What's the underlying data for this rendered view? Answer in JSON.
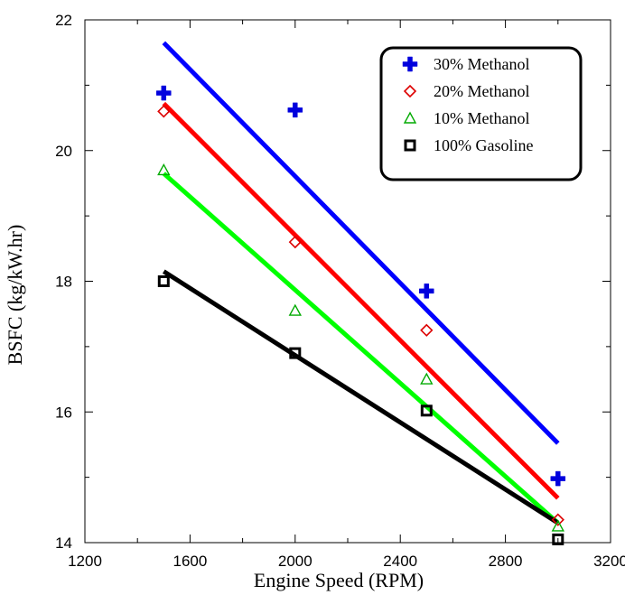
{
  "chart_data": {
    "type": "scatter",
    "title": "",
    "xlabel": "Engine Speed (RPM)",
    "ylabel": "BSFC (kg/kW.hr)",
    "xlim": [
      1200,
      3200
    ],
    "ylim": [
      14,
      22
    ],
    "x_ticks": [
      1200,
      1600,
      2000,
      2400,
      2800,
      3200
    ],
    "y_ticks": [
      14,
      16,
      18,
      20,
      22
    ],
    "grid": false,
    "legend_position": "top-right",
    "series": [
      {
        "name": "30% Methanol",
        "marker": "plus",
        "color": "#0000dd",
        "line_color": "#0000ff",
        "x": [
          1500,
          2000,
          2500,
          3000
        ],
        "y": [
          20.88,
          20.62,
          17.85,
          14.98
        ],
        "fit": [
          [
            1500,
            21.65
          ],
          [
            3000,
            15.52
          ]
        ]
      },
      {
        "name": "20% Methanol",
        "marker": "diamond",
        "color": "#dd0000",
        "line_color": "#ff0000",
        "x": [
          1500,
          2000,
          2500,
          3000
        ],
        "y": [
          20.6,
          18.6,
          17.25,
          14.35
        ],
        "fit": [
          [
            1500,
            20.72
          ],
          [
            3000,
            14.68
          ]
        ]
      },
      {
        "name": "10% Methanol",
        "marker": "triangle",
        "color": "#00aa00",
        "line_color": "#00ff00",
        "x": [
          1500,
          2000,
          2500,
          3000
        ],
        "y": [
          19.7,
          17.55,
          16.5,
          14.25
        ],
        "fit": [
          [
            1500,
            19.65
          ],
          [
            3000,
            14.3
          ]
        ]
      },
      {
        "name": "100% Gasoline",
        "marker": "square",
        "color": "#000000",
        "line_color": "#000000",
        "x": [
          1500,
          2000,
          2500,
          3000
        ],
        "y": [
          18.0,
          16.9,
          16.02,
          14.05
        ],
        "fit": [
          [
            1500,
            18.15
          ],
          [
            3000,
            14.3
          ]
        ]
      }
    ]
  }
}
